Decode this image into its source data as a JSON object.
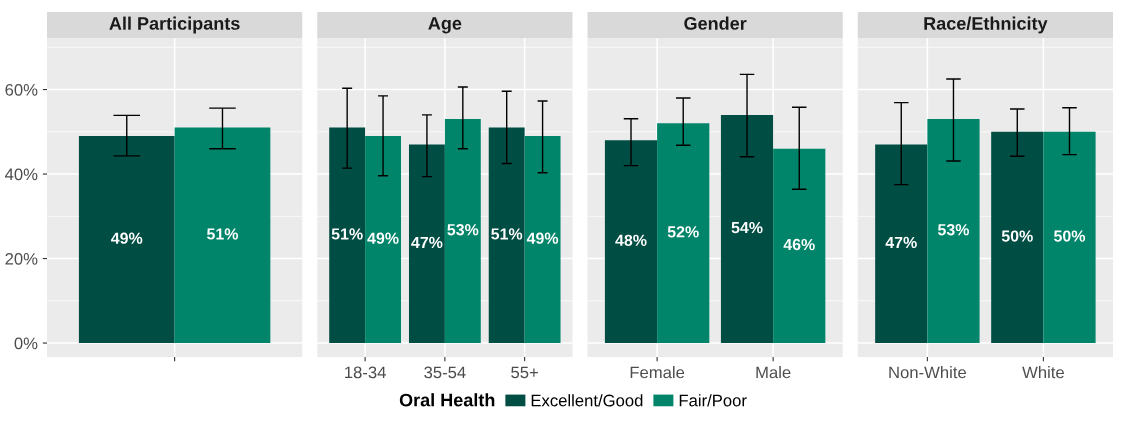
{
  "chart_data": [
    {
      "type": "bar",
      "title": "All Participants",
      "categories": [
        null
      ],
      "ylim": [
        -3.3,
        72.2
      ],
      "yticks": [
        {
          "value": 0,
          "label": "0%"
        },
        {
          "value": 20,
          "label": "20%"
        },
        {
          "value": 40,
          "label": "40%"
        },
        {
          "value": 60,
          "label": "60%"
        }
      ],
      "grid": true,
      "legend": "bottom",
      "legend_title": "Oral Health",
      "series": [
        {
          "name": "Excellent/Good",
          "color": "#004d43",
          "values": [
            49
          ],
          "value_labels": [
            "49%"
          ],
          "errors": [
            [
              44.3,
              53.9
            ]
          ]
        },
        {
          "name": "Fair/Poor",
          "color": "#00856a",
          "values": [
            51
          ],
          "value_labels": [
            "51%"
          ],
          "errors": [
            [
              46.0,
              55.6
            ]
          ]
        }
      ]
    },
    {
      "type": "bar",
      "title": "Age",
      "categories": [
        "18-34",
        "35-54",
        "55+"
      ],
      "ylim": [
        -3.3,
        72.2
      ],
      "yticks": [
        0,
        20,
        40,
        60
      ],
      "grid": true,
      "tick_labels": "x",
      "series": [
        {
          "color": "#004d43",
          "values": [
            51,
            47,
            51
          ],
          "value_labels": [
            "51%",
            "47%",
            "51%"
          ],
          "errors": [
            [
              41.4,
              60.3
            ],
            [
              39.4,
              54.0
            ],
            [
              42.5,
              59.6
            ]
          ]
        },
        {
          "color": "#00856a",
          "values": [
            49,
            53,
            49
          ],
          "value_labels": [
            "49%",
            "53%",
            "49%"
          ],
          "errors": [
            [
              39.6,
              58.5
            ],
            [
              46.0,
              60.6
            ],
            [
              40.3,
              57.3
            ]
          ]
        }
      ]
    },
    {
      "type": "bar",
      "title": "Gender",
      "categories": [
        "Female",
        "Male"
      ],
      "ylim": [
        -3.3,
        72.2
      ],
      "yticks": [
        0,
        20,
        40,
        60
      ],
      "grid": true,
      "tick_labels": "x",
      "series": [
        {
          "color": "#004d43",
          "values": [
            48,
            54
          ],
          "value_labels": [
            "48%",
            "54%"
          ],
          "errors": [
            [
              42.0,
              53.1
            ],
            [
              44.1,
              63.6
            ]
          ]
        },
        {
          "color": "#00856a",
          "values": [
            52,
            46
          ],
          "value_labels": [
            "52%",
            "46%"
          ],
          "errors": [
            [
              46.8,
              58.0
            ],
            [
              36.4,
              55.8
            ]
          ]
        }
      ]
    },
    {
      "type": "bar",
      "title": "Race/Ethnicity",
      "categories": [
        "Non-White",
        "White"
      ],
      "ylim": [
        -3.3,
        72.2
      ],
      "yticks": [
        0,
        20,
        40,
        60
      ],
      "grid": true,
      "tick_labels": "x",
      "series": [
        {
          "color": "#004d43",
          "values": [
            47,
            50
          ],
          "value_labels": [
            "47%",
            "50%"
          ],
          "errors": [
            [
              37.5,
              56.9
            ],
            [
              44.2,
              55.4
            ]
          ]
        },
        {
          "color": "#00856a",
          "values": [
            53,
            50
          ],
          "value_labels": [
            "53%",
            "50%"
          ],
          "errors": [
            [
              43.1,
              62.5
            ],
            [
              44.6,
              55.7
            ]
          ]
        }
      ]
    }
  ]
}
